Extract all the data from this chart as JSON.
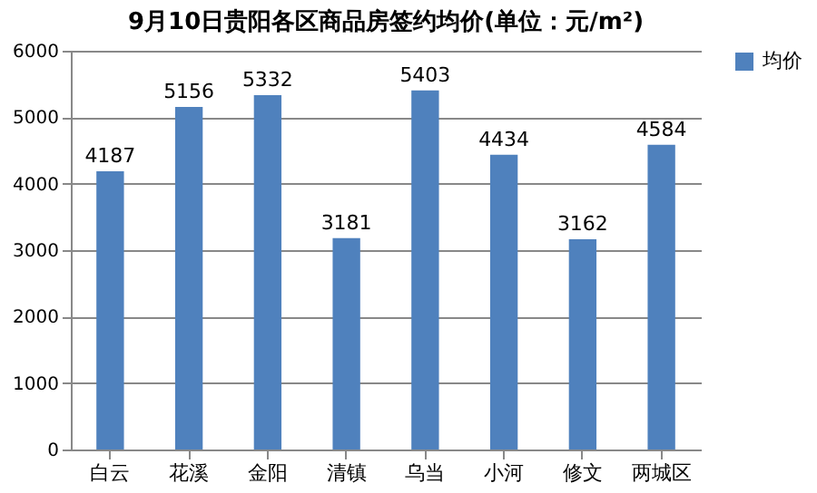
{
  "chart_data": {
    "type": "bar",
    "title": "9月10日贵阳各区商品房签约均价(单位：元/m²)",
    "categories": [
      "白云",
      "花溪",
      "金阳",
      "清镇",
      "乌当",
      "小河",
      "修文",
      "两城区"
    ],
    "series": [
      {
        "name": "均价",
        "color": "#4f81bd",
        "values": [
          4187,
          5156,
          5332,
          3181,
          5403,
          4434,
          3162,
          4584
        ]
      }
    ],
    "ylim": [
      0,
      6000
    ],
    "yticks": [
      0,
      1000,
      2000,
      3000,
      4000,
      5000,
      6000
    ],
    "grid": "y",
    "legend": "right",
    "data_labels": true
  }
}
